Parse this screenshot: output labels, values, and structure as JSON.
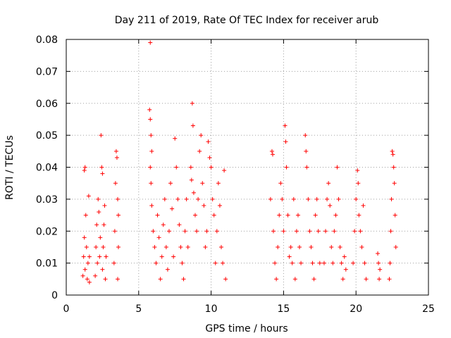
{
  "chart_data": {
    "type": "scatter",
    "title": "Day 211 of 2019, Rate Of TEC Index for receiver arub",
    "xlabel": "GPS time / hours",
    "ylabel": "ROTI / TECUs",
    "xlim": [
      0,
      25
    ],
    "ylim": [
      0,
      0.08
    ],
    "xticks": [
      0,
      5,
      10,
      15,
      20,
      25
    ],
    "yticks": [
      0,
      0.01,
      0.02,
      0.03,
      0.04,
      0.05,
      0.06,
      0.07,
      0.08
    ],
    "xtick_labels": [
      "0",
      "5",
      "10",
      "15",
      "20",
      "25"
    ],
    "ytick_labels": [
      "0",
      "0.01",
      "0.02",
      "0.03",
      "0.04",
      "0.05",
      "0.06",
      "0.07",
      "0.08"
    ],
    "grid": true,
    "marker": "+",
    "color": "#ff0000",
    "series": [
      {
        "name": "ROTI",
        "points": [
          [
            1.15,
            0.006
          ],
          [
            1.2,
            0.012
          ],
          [
            1.25,
            0.018
          ],
          [
            1.25,
            0.039
          ],
          [
            1.3,
            0.04
          ],
          [
            1.3,
            0.008
          ],
          [
            1.35,
            0.025
          ],
          [
            1.4,
            0.015
          ],
          [
            1.45,
            0.005
          ],
          [
            1.5,
            0.01
          ],
          [
            1.55,
            0.031
          ],
          [
            1.6,
            0.012
          ],
          [
            1.6,
            0.004
          ],
          [
            2.0,
            0.006
          ],
          [
            2.05,
            0.015
          ],
          [
            2.1,
            0.022
          ],
          [
            2.15,
            0.01
          ],
          [
            2.2,
            0.03
          ],
          [
            2.25,
            0.026
          ],
          [
            2.3,
            0.012
          ],
          [
            2.35,
            0.018
          ],
          [
            2.4,
            0.05
          ],
          [
            2.45,
            0.04
          ],
          [
            2.5,
            0.038
          ],
          [
            2.5,
            0.008
          ],
          [
            2.55,
            0.015
          ],
          [
            2.6,
            0.022
          ],
          [
            2.65,
            0.028
          ],
          [
            2.7,
            0.005
          ],
          [
            2.75,
            0.012
          ],
          [
            3.3,
            0.01
          ],
          [
            3.35,
            0.02
          ],
          [
            3.4,
            0.035
          ],
          [
            3.45,
            0.045
          ],
          [
            3.5,
            0.043
          ],
          [
            3.55,
            0.03
          ],
          [
            3.6,
            0.025
          ],
          [
            3.6,
            0.015
          ],
          [
            3.55,
            0.005
          ],
          [
            5.8,
            0.079
          ],
          [
            5.75,
            0.058
          ],
          [
            5.8,
            0.055
          ],
          [
            5.85,
            0.05
          ],
          [
            5.9,
            0.045
          ],
          [
            5.8,
            0.04
          ],
          [
            5.85,
            0.035
          ],
          [
            5.9,
            0.028
          ],
          [
            6.0,
            0.02
          ],
          [
            6.1,
            0.015
          ],
          [
            6.2,
            0.01
          ],
          [
            6.3,
            0.025
          ],
          [
            6.4,
            0.018
          ],
          [
            6.5,
            0.005
          ],
          [
            6.6,
            0.012
          ],
          [
            6.7,
            0.022
          ],
          [
            6.8,
            0.03
          ],
          [
            6.9,
            0.015
          ],
          [
            7.0,
            0.008
          ],
          [
            7.1,
            0.02
          ],
          [
            7.2,
            0.035
          ],
          [
            7.3,
            0.027
          ],
          [
            7.4,
            0.012
          ],
          [
            7.5,
            0.049
          ],
          [
            7.6,
            0.04
          ],
          [
            7.7,
            0.03
          ],
          [
            7.8,
            0.022
          ],
          [
            7.9,
            0.015
          ],
          [
            8.0,
            0.01
          ],
          [
            8.1,
            0.005
          ],
          [
            8.2,
            0.02
          ],
          [
            8.3,
            0.03
          ],
          [
            8.4,
            0.015
          ],
          [
            8.6,
            0.04
          ],
          [
            8.65,
            0.036
          ],
          [
            8.7,
            0.06
          ],
          [
            8.75,
            0.053
          ],
          [
            8.8,
            0.032
          ],
          [
            8.9,
            0.025
          ],
          [
            9.0,
            0.02
          ],
          [
            9.1,
            0.03
          ],
          [
            9.2,
            0.045
          ],
          [
            9.3,
            0.05
          ],
          [
            9.4,
            0.035
          ],
          [
            9.5,
            0.028
          ],
          [
            9.6,
            0.015
          ],
          [
            9.7,
            0.02
          ],
          [
            9.8,
            0.048
          ],
          [
            9.9,
            0.043
          ],
          [
            10.0,
            0.04
          ],
          [
            10.1,
            0.03
          ],
          [
            10.2,
            0.025
          ],
          [
            10.3,
            0.01
          ],
          [
            10.4,
            0.02
          ],
          [
            10.5,
            0.035
          ],
          [
            10.6,
            0.028
          ],
          [
            10.7,
            0.015
          ],
          [
            10.8,
            0.01
          ],
          [
            10.9,
            0.039
          ],
          [
            11.0,
            0.005
          ],
          [
            14.1,
            0.03
          ],
          [
            14.2,
            0.045
          ],
          [
            14.25,
            0.044
          ],
          [
            14.3,
            0.02
          ],
          [
            14.4,
            0.01
          ],
          [
            14.5,
            0.005
          ],
          [
            14.6,
            0.015
          ],
          [
            14.7,
            0.025
          ],
          [
            14.8,
            0.035
          ],
          [
            14.9,
            0.03
          ],
          [
            15.0,
            0.02
          ],
          [
            15.1,
            0.053
          ],
          [
            15.15,
            0.048
          ],
          [
            15.2,
            0.04
          ],
          [
            15.3,
            0.025
          ],
          [
            15.4,
            0.012
          ],
          [
            15.5,
            0.015
          ],
          [
            15.6,
            0.01
          ],
          [
            15.7,
            0.03
          ],
          [
            15.8,
            0.005
          ],
          [
            15.9,
            0.02
          ],
          [
            16.0,
            0.025
          ],
          [
            16.1,
            0.015
          ],
          [
            16.2,
            0.01
          ],
          [
            16.5,
            0.05
          ],
          [
            16.55,
            0.045
          ],
          [
            16.6,
            0.04
          ],
          [
            16.7,
            0.03
          ],
          [
            16.8,
            0.02
          ],
          [
            16.9,
            0.015
          ],
          [
            17.0,
            0.01
          ],
          [
            17.1,
            0.005
          ],
          [
            17.2,
            0.025
          ],
          [
            17.3,
            0.03
          ],
          [
            17.4,
            0.02
          ],
          [
            17.5,
            0.01
          ],
          [
            17.8,
            0.01
          ],
          [
            17.9,
            0.02
          ],
          [
            18.0,
            0.03
          ],
          [
            18.1,
            0.035
          ],
          [
            18.2,
            0.028
          ],
          [
            18.3,
            0.015
          ],
          [
            18.4,
            0.01
          ],
          [
            18.5,
            0.02
          ],
          [
            18.6,
            0.025
          ],
          [
            18.7,
            0.04
          ],
          [
            18.8,
            0.03
          ],
          [
            18.9,
            0.015
          ],
          [
            19.0,
            0.01
          ],
          [
            19.1,
            0.005
          ],
          [
            19.2,
            0.012
          ],
          [
            19.3,
            0.008
          ],
          [
            19.8,
            0.01
          ],
          [
            19.9,
            0.02
          ],
          [
            20.0,
            0.03
          ],
          [
            20.1,
            0.039
          ],
          [
            20.15,
            0.035
          ],
          [
            20.2,
            0.025
          ],
          [
            20.3,
            0.02
          ],
          [
            20.4,
            0.015
          ],
          [
            20.5,
            0.028
          ],
          [
            20.6,
            0.01
          ],
          [
            20.7,
            0.005
          ],
          [
            21.5,
            0.013
          ],
          [
            21.55,
            0.01
          ],
          [
            21.6,
            0.005
          ],
          [
            21.65,
            0.008
          ],
          [
            22.3,
            0.005
          ],
          [
            22.35,
            0.01
          ],
          [
            22.4,
            0.02
          ],
          [
            22.45,
            0.03
          ],
          [
            22.5,
            0.045
          ],
          [
            22.55,
            0.044
          ],
          [
            22.6,
            0.04
          ],
          [
            22.65,
            0.035
          ],
          [
            22.7,
            0.025
          ],
          [
            22.75,
            0.015
          ]
        ]
      }
    ]
  }
}
